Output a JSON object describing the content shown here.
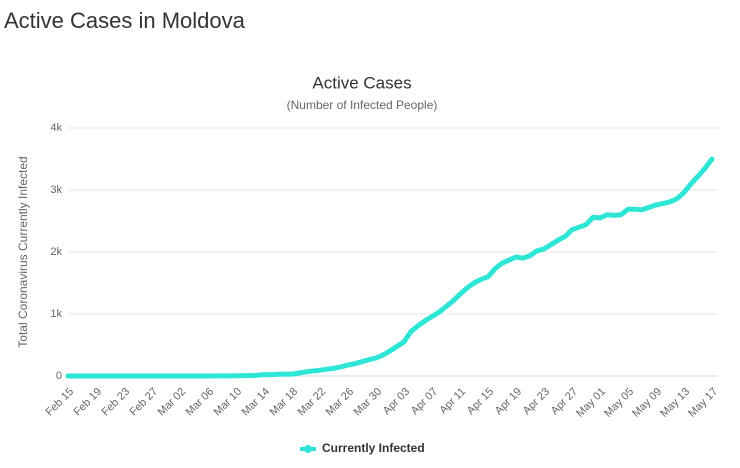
{
  "page_title": "Active Cases in Moldova",
  "chart_data": {
    "type": "line",
    "title": "Active Cases",
    "subtitle": "(Number of Infected People)",
    "y_label": "Total Coronavirus Currently Infected",
    "categories": [
      "Feb 15",
      null,
      null,
      null,
      "Feb 19",
      null,
      null,
      null,
      "Feb 23",
      null,
      null,
      null,
      "Feb 27",
      null,
      null,
      null,
      "Mar 02",
      null,
      null,
      null,
      "Mar 06",
      null,
      null,
      null,
      "Mar 10",
      null,
      null,
      null,
      "Mar 14",
      null,
      null,
      null,
      "Mar 18",
      null,
      null,
      null,
      "Mar 22",
      null,
      null,
      null,
      "Mar 26",
      null,
      null,
      null,
      "Mar 30",
      null,
      null,
      null,
      "Apr 03",
      null,
      null,
      null,
      "Apr 07",
      null,
      null,
      null,
      "Apr 11",
      null,
      null,
      null,
      "Apr 15",
      null,
      null,
      null,
      "Apr 19",
      null,
      null,
      null,
      "Apr 23",
      null,
      null,
      null,
      "Apr 27",
      null,
      null,
      null,
      "May 01",
      null,
      null,
      null,
      "May 05",
      null,
      null,
      null,
      "May 09",
      null,
      null,
      null,
      "May 13",
      null,
      null,
      null,
      "May 17"
    ],
    "series": [
      {
        "name": "Currently Infected",
        "color": "#2ee6d6",
        "values": [
          0,
          0,
          0,
          0,
          0,
          0,
          0,
          0,
          0,
          0,
          0,
          0,
          0,
          0,
          0,
          0,
          0,
          0,
          0,
          0,
          0,
          1,
          1,
          1,
          3,
          6,
          6,
          12,
          23,
          23,
          29,
          30,
          30,
          49,
          66,
          80,
          94,
          109,
          125,
          149,
          177,
          199,
          231,
          263,
          291,
          338,
          405,
          477,
          550,
          720,
          810,
          890,
          960,
          1030,
          1120,
          1210,
          1320,
          1420,
          1500,
          1560,
          1600,
          1730,
          1820,
          1870,
          1920,
          1900,
          1940,
          2020,
          2050,
          2120,
          2190,
          2250,
          2360,
          2400,
          2440,
          2560,
          2550,
          2600,
          2590,
          2600,
          2690,
          2690,
          2680,
          2720,
          2760,
          2780,
          2810,
          2860,
          2960,
          3100,
          3220,
          3350,
          3500
        ]
      }
    ],
    "ylim": [
      0,
      4000
    ],
    "yticks": [
      0,
      {
        "value": 1000,
        "label": "1k"
      },
      {
        "value": 2000,
        "label": "2k"
      },
      {
        "value": 3000,
        "label": "3k"
      },
      {
        "value": 4000,
        "label": "4k"
      }
    ],
    "grid": true
  }
}
